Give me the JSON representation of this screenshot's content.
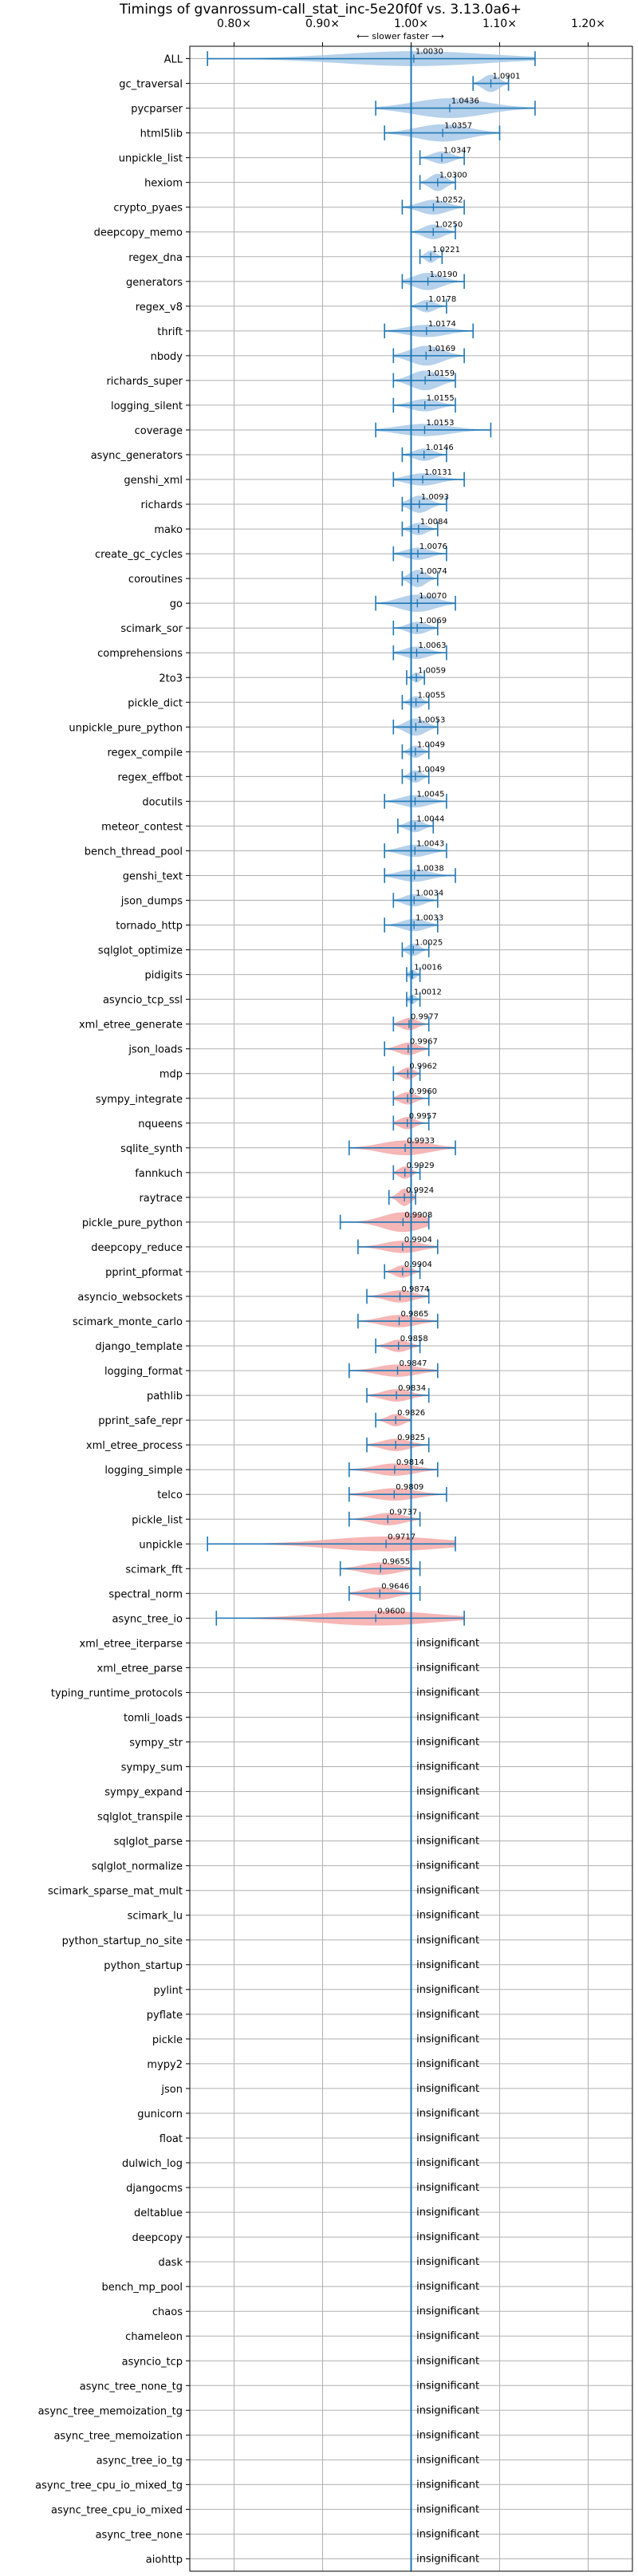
{
  "chart_data": {
    "type": "violin",
    "title": "Timings of gvanrossum-call_stat_inc-5e20f0f vs. 3.13.0a6+",
    "subtitle": "⟵ slower    faster ⟶",
    "xlim": [
      0.75,
      1.25
    ],
    "x_ticks": [
      0.8,
      0.9,
      1.0,
      1.1,
      1.2
    ],
    "x_tick_labels": [
      "0.80×",
      "0.90×",
      "1.00×",
      "1.10×",
      "1.20×"
    ],
    "grid": true,
    "colors": {
      "faster": "#a9c9e8",
      "slower": "#f4a9a9",
      "errorbar": "#1f77b4",
      "grid": "#b0b0b0"
    },
    "insignificant_label": "insignificant",
    "benchmarks": [
      {
        "name": "ALL",
        "mean": 1.003,
        "label": "1.0030",
        "lo": 0.77,
        "hi": 1.14,
        "w": 0.6
      },
      {
        "name": "gc_traversal",
        "mean": 1.0901,
        "label": "1.0901",
        "lo": 1.07,
        "hi": 1.11,
        "w": 0.7
      },
      {
        "name": "pycparser",
        "mean": 1.0436,
        "label": "1.0436",
        "lo": 0.96,
        "hi": 1.14,
        "w": 0.8
      },
      {
        "name": "html5lib",
        "mean": 1.0357,
        "label": "1.0357",
        "lo": 0.97,
        "hi": 1.1,
        "w": 0.7
      },
      {
        "name": "unpickle_list",
        "mean": 1.0347,
        "label": "1.0347",
        "lo": 1.01,
        "hi": 1.06,
        "w": 0.5
      },
      {
        "name": "hexiom",
        "mean": 1.03,
        "label": "1.0300",
        "lo": 1.01,
        "hi": 1.05,
        "w": 0.7
      },
      {
        "name": "crypto_pyaes",
        "mean": 1.0252,
        "label": "1.0252",
        "lo": 0.99,
        "hi": 1.06,
        "w": 0.6
      },
      {
        "name": "deepcopy_memo",
        "mean": 1.025,
        "label": "1.0250",
        "lo": 1.0,
        "hi": 1.05,
        "w": 0.6
      },
      {
        "name": "regex_dna",
        "mean": 1.0221,
        "label": "1.0221",
        "lo": 1.01,
        "hi": 1.035,
        "w": 0.5
      },
      {
        "name": "generators",
        "mean": 1.019,
        "label": "1.0190",
        "lo": 0.99,
        "hi": 1.06,
        "w": 0.7
      },
      {
        "name": "regex_v8",
        "mean": 1.0178,
        "label": "1.0178",
        "lo": 1.0,
        "hi": 1.04,
        "w": 0.5
      },
      {
        "name": "thrift",
        "mean": 1.0174,
        "label": "1.0174",
        "lo": 0.97,
        "hi": 1.07,
        "w": 0.5
      },
      {
        "name": "nbody",
        "mean": 1.0169,
        "label": "1.0169",
        "lo": 0.98,
        "hi": 1.06,
        "w": 0.8
      },
      {
        "name": "richards_super",
        "mean": 1.0159,
        "label": "1.0159",
        "lo": 0.98,
        "hi": 1.05,
        "w": 0.8
      },
      {
        "name": "logging_silent",
        "mean": 1.0155,
        "label": "1.0155",
        "lo": 0.98,
        "hi": 1.05,
        "w": 0.5
      },
      {
        "name": "coverage",
        "mean": 1.0153,
        "label": "1.0153",
        "lo": 0.96,
        "hi": 1.09,
        "w": 0.5
      },
      {
        "name": "async_generators",
        "mean": 1.0146,
        "label": "1.0146",
        "lo": 0.99,
        "hi": 1.04,
        "w": 0.5
      },
      {
        "name": "genshi_xml",
        "mean": 1.0131,
        "label": "1.0131",
        "lo": 0.98,
        "hi": 1.06,
        "w": 0.5
      },
      {
        "name": "richards",
        "mean": 1.0093,
        "label": "1.0093",
        "lo": 0.99,
        "hi": 1.04,
        "w": 0.7
      },
      {
        "name": "mako",
        "mean": 1.0084,
        "label": "1.0084",
        "lo": 0.99,
        "hi": 1.03,
        "w": 0.5
      },
      {
        "name": "create_gc_cycles",
        "mean": 1.0076,
        "label": "1.0076",
        "lo": 0.98,
        "hi": 1.04,
        "w": 0.5
      },
      {
        "name": "coroutines",
        "mean": 1.0074,
        "label": "1.0074",
        "lo": 0.99,
        "hi": 1.03,
        "w": 0.7
      },
      {
        "name": "go",
        "mean": 1.007,
        "label": "1.0070",
        "lo": 0.96,
        "hi": 1.05,
        "w": 0.7
      },
      {
        "name": "scimark_sor",
        "mean": 1.0069,
        "label": "1.0069",
        "lo": 0.98,
        "hi": 1.03,
        "w": 0.5
      },
      {
        "name": "comprehensions",
        "mean": 1.0063,
        "label": "1.0063",
        "lo": 0.98,
        "hi": 1.04,
        "w": 0.5
      },
      {
        "name": "2to3",
        "mean": 1.0059,
        "label": "1.0059",
        "lo": 0.995,
        "hi": 1.015,
        "w": 0.4
      },
      {
        "name": "pickle_dict",
        "mean": 1.0055,
        "label": "1.0055",
        "lo": 0.99,
        "hi": 1.02,
        "w": 0.5
      },
      {
        "name": "unpickle_pure_python",
        "mean": 1.0053,
        "label": "1.0053",
        "lo": 0.98,
        "hi": 1.03,
        "w": 0.7
      },
      {
        "name": "regex_compile",
        "mean": 1.0049,
        "label": "1.0049",
        "lo": 0.99,
        "hi": 1.02,
        "w": 0.5
      },
      {
        "name": "regex_effbot",
        "mean": 1.0049,
        "label": "1.0049",
        "lo": 0.99,
        "hi": 1.02,
        "w": 0.5
      },
      {
        "name": "docutils",
        "mean": 1.0045,
        "label": "1.0045",
        "lo": 0.97,
        "hi": 1.04,
        "w": 0.5
      },
      {
        "name": "meteor_contest",
        "mean": 1.0044,
        "label": "1.0044",
        "lo": 0.985,
        "hi": 1.025,
        "w": 0.5
      },
      {
        "name": "bench_thread_pool",
        "mean": 1.0043,
        "label": "1.0043",
        "lo": 0.97,
        "hi": 1.04,
        "w": 0.5
      },
      {
        "name": "genshi_text",
        "mean": 1.0038,
        "label": "1.0038",
        "lo": 0.97,
        "hi": 1.05,
        "w": 0.5
      },
      {
        "name": "json_dumps",
        "mean": 1.0034,
        "label": "1.0034",
        "lo": 0.98,
        "hi": 1.03,
        "w": 0.5
      },
      {
        "name": "tornado_http",
        "mean": 1.0033,
        "label": "1.0033",
        "lo": 0.97,
        "hi": 1.03,
        "w": 0.5
      },
      {
        "name": "sqlglot_optimize",
        "mean": 1.0025,
        "label": "1.0025",
        "lo": 0.99,
        "hi": 1.02,
        "w": 0.5
      },
      {
        "name": "pidigits",
        "mean": 1.0016,
        "label": "1.0016",
        "lo": 0.995,
        "hi": 1.01,
        "w": 0.4
      },
      {
        "name": "asyncio_tcp_ssl",
        "mean": 1.0012,
        "label": "1.0012",
        "lo": 0.995,
        "hi": 1.01,
        "w": 0.4
      },
      {
        "name": "xml_etree_generate",
        "mean": 0.9977,
        "label": "0.9977",
        "lo": 0.98,
        "hi": 1.02,
        "w": 0.5
      },
      {
        "name": "json_loads",
        "mean": 0.9967,
        "label": "0.9967",
        "lo": 0.97,
        "hi": 1.02,
        "w": 0.5
      },
      {
        "name": "mdp",
        "mean": 0.9962,
        "label": "0.9962",
        "lo": 0.98,
        "hi": 1.01,
        "w": 0.5
      },
      {
        "name": "sympy_integrate",
        "mean": 0.996,
        "label": "0.9960",
        "lo": 0.98,
        "hi": 1.02,
        "w": 0.5
      },
      {
        "name": "nqueens",
        "mean": 0.9957,
        "label": "0.9957",
        "lo": 0.98,
        "hi": 1.02,
        "w": 0.5
      },
      {
        "name": "sqlite_synth",
        "mean": 0.9933,
        "label": "0.9933",
        "lo": 0.93,
        "hi": 1.05,
        "w": 0.6
      },
      {
        "name": "fannkuch",
        "mean": 0.9929,
        "label": "0.9929",
        "lo": 0.98,
        "hi": 1.01,
        "w": 0.5
      },
      {
        "name": "raytrace",
        "mean": 0.9924,
        "label": "0.9924",
        "lo": 0.975,
        "hi": 1.005,
        "w": 0.7
      },
      {
        "name": "pickle_pure_python",
        "mean": 0.9908,
        "label": "0.9908",
        "lo": 0.92,
        "hi": 1.02,
        "w": 0.8
      },
      {
        "name": "deepcopy_reduce",
        "mean": 0.9904,
        "label": "0.9904",
        "lo": 0.94,
        "hi": 1.03,
        "w": 0.5
      },
      {
        "name": "pprint_pformat",
        "mean": 0.9904,
        "label": "0.9904",
        "lo": 0.97,
        "hi": 1.01,
        "w": 0.5
      },
      {
        "name": "asyncio_websockets",
        "mean": 0.9874,
        "label": "0.9874",
        "lo": 0.95,
        "hi": 1.02,
        "w": 0.5
      },
      {
        "name": "scimark_monte_carlo",
        "mean": 0.9865,
        "label": "0.9865",
        "lo": 0.94,
        "hi": 1.03,
        "w": 0.5
      },
      {
        "name": "django_template",
        "mean": 0.9858,
        "label": "0.9858",
        "lo": 0.96,
        "hi": 1.01,
        "w": 0.5
      },
      {
        "name": "logging_format",
        "mean": 0.9847,
        "label": "0.9847",
        "lo": 0.93,
        "hi": 1.03,
        "w": 0.5
      },
      {
        "name": "pathlib",
        "mean": 0.9834,
        "label": "0.9834",
        "lo": 0.95,
        "hi": 1.02,
        "w": 0.5
      },
      {
        "name": "pprint_safe_repr",
        "mean": 0.9826,
        "label": "0.9826",
        "lo": 0.96,
        "hi": 1.0,
        "w": 0.5
      },
      {
        "name": "xml_etree_process",
        "mean": 0.9825,
        "label": "0.9825",
        "lo": 0.95,
        "hi": 1.02,
        "w": 0.5
      },
      {
        "name": "logging_simple",
        "mean": 0.9814,
        "label": "0.9814",
        "lo": 0.93,
        "hi": 1.03,
        "w": 0.5
      },
      {
        "name": "telco",
        "mean": 0.9809,
        "label": "0.9809",
        "lo": 0.93,
        "hi": 1.04,
        "w": 0.5
      },
      {
        "name": "pickle_list",
        "mean": 0.9737,
        "label": "0.9737",
        "lo": 0.93,
        "hi": 1.01,
        "w": 0.5
      },
      {
        "name": "unpickle",
        "mean": 0.9717,
        "label": "0.9717",
        "lo": 0.77,
        "hi": 1.05,
        "w": 0.6
      },
      {
        "name": "scimark_fft",
        "mean": 0.9655,
        "label": "0.9655",
        "lo": 0.92,
        "hi": 1.01,
        "w": 0.5
      },
      {
        "name": "spectral_norm",
        "mean": 0.9646,
        "label": "0.9646",
        "lo": 0.93,
        "hi": 1.01,
        "w": 0.5
      },
      {
        "name": "async_tree_io",
        "mean": 0.96,
        "label": "0.9600",
        "lo": 0.78,
        "hi": 1.06,
        "w": 0.6
      },
      {
        "name": "xml_etree_iterparse",
        "insignificant": true
      },
      {
        "name": "xml_etree_parse",
        "insignificant": true
      },
      {
        "name": "typing_runtime_protocols",
        "insignificant": true
      },
      {
        "name": "tomli_loads",
        "insignificant": true
      },
      {
        "name": "sympy_str",
        "insignificant": true
      },
      {
        "name": "sympy_sum",
        "insignificant": true
      },
      {
        "name": "sympy_expand",
        "insignificant": true
      },
      {
        "name": "sqlglot_transpile",
        "insignificant": true
      },
      {
        "name": "sqlglot_parse",
        "insignificant": true
      },
      {
        "name": "sqlglot_normalize",
        "insignificant": true
      },
      {
        "name": "scimark_sparse_mat_mult",
        "insignificant": true
      },
      {
        "name": "scimark_lu",
        "insignificant": true
      },
      {
        "name": "python_startup_no_site",
        "insignificant": true
      },
      {
        "name": "python_startup",
        "insignificant": true
      },
      {
        "name": "pylint",
        "insignificant": true
      },
      {
        "name": "pyflate",
        "insignificant": true
      },
      {
        "name": "pickle",
        "insignificant": true
      },
      {
        "name": "mypy2",
        "insignificant": true
      },
      {
        "name": "json",
        "insignificant": true
      },
      {
        "name": "gunicorn",
        "insignificant": true
      },
      {
        "name": "float",
        "insignificant": true
      },
      {
        "name": "dulwich_log",
        "insignificant": true
      },
      {
        "name": "djangocms",
        "insignificant": true
      },
      {
        "name": "deltablue",
        "insignificant": true
      },
      {
        "name": "deepcopy",
        "insignificant": true
      },
      {
        "name": "dask",
        "insignificant": true
      },
      {
        "name": "bench_mp_pool",
        "insignificant": true
      },
      {
        "name": "chaos",
        "insignificant": true
      },
      {
        "name": "chameleon",
        "insignificant": true
      },
      {
        "name": "asyncio_tcp",
        "insignificant": true
      },
      {
        "name": "async_tree_none_tg",
        "insignificant": true
      },
      {
        "name": "async_tree_memoization_tg",
        "insignificant": true
      },
      {
        "name": "async_tree_memoization",
        "insignificant": true
      },
      {
        "name": "async_tree_io_tg",
        "insignificant": true
      },
      {
        "name": "async_tree_cpu_io_mixed_tg",
        "insignificant": true
      },
      {
        "name": "async_tree_cpu_io_mixed",
        "insignificant": true
      },
      {
        "name": "async_tree_none",
        "insignificant": true
      },
      {
        "name": "aiohttp",
        "insignificant": true
      }
    ]
  }
}
